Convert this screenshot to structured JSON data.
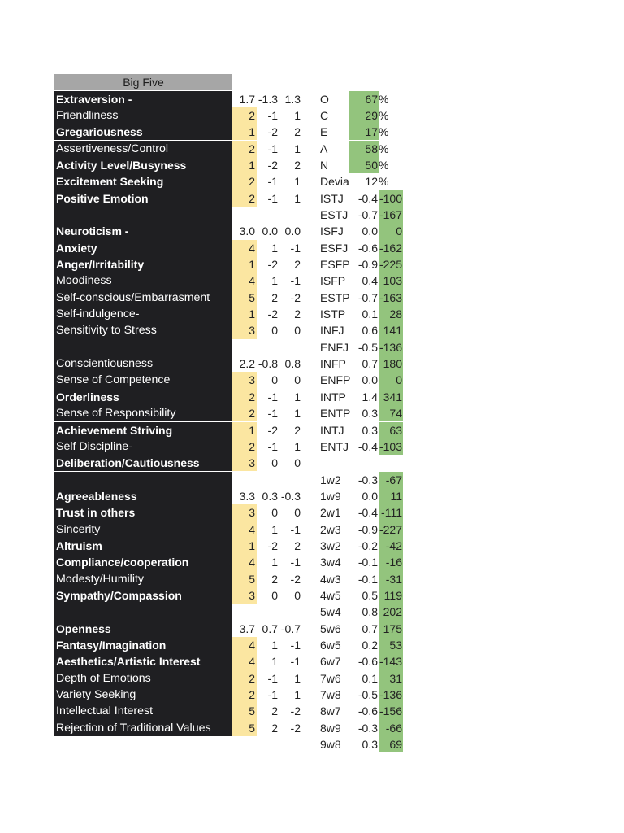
{
  "header": "Big Five",
  "traits": [
    {
      "label": "Extraversion -",
      "bold": true,
      "score": "",
      "a": "",
      "b": "",
      "summary": [
        "1.7",
        "-1.3",
        "1.3"
      ]
    },
    {
      "label": "Friendliness",
      "bold": false,
      "score": "2",
      "a": "-1",
      "b": "1"
    },
    {
      "label": "Gregariousness",
      "bold": true,
      "score": "1",
      "a": "-2",
      "b": "2"
    },
    {
      "label": "Assertiveness/Control",
      "bold": false,
      "score": "2",
      "a": "-1",
      "b": "1"
    },
    {
      "label": "Activity Level/Busyness",
      "bold": true,
      "score": "1",
      "a": "-2",
      "b": "2"
    },
    {
      "label": "Excitement Seeking",
      "bold": true,
      "score": "2",
      "a": "-1",
      "b": "1"
    },
    {
      "label": "Positive Emotion",
      "bold": true,
      "score": "2",
      "a": "-1",
      "b": "1"
    },
    {
      "label": "",
      "bold": false,
      "blank": true
    },
    {
      "label": "Neuroticism -",
      "bold": true,
      "summary": [
        "3.0",
        "0.0",
        "0.0"
      ]
    },
    {
      "label": "Anxiety",
      "bold": true,
      "score": "4",
      "a": "1",
      "b": "-1"
    },
    {
      "label": "Anger/Irritability",
      "bold": true,
      "score": "1",
      "a": "-2",
      "b": "2"
    },
    {
      "label": "Moodiness",
      "bold": false,
      "score": "4",
      "a": "1",
      "b": "-1"
    },
    {
      "label": "Self-conscious/Embarrasment",
      "bold": false,
      "score": "5",
      "a": "2",
      "b": "-2"
    },
    {
      "label": "Self-indulgence-",
      "bold": false,
      "score": "1",
      "a": "-2",
      "b": "2"
    },
    {
      "label": "Sensitivity to Stress",
      "bold": false,
      "score": "3",
      "a": "0",
      "b": "0"
    },
    {
      "label": "",
      "bold": false,
      "blank": true
    },
    {
      "label": "Conscientiousness",
      "bold": false,
      "summary": [
        "2.2",
        "-0.8",
        "0.8"
      ]
    },
    {
      "label": "Sense of Competence",
      "bold": false,
      "score": "3",
      "a": "0",
      "b": "0"
    },
    {
      "label": "Orderliness",
      "bold": true,
      "score": "2",
      "a": "-1",
      "b": "1"
    },
    {
      "label": "Sense of Responsibility",
      "bold": false,
      "score": "2",
      "a": "-1",
      "b": "1"
    },
    {
      "label": "Achievement Striving",
      "bold": true,
      "score": "1",
      "a": "-2",
      "b": "2"
    },
    {
      "label": "Self Discipline-",
      "bold": false,
      "score": "2",
      "a": "-1",
      "b": "1"
    },
    {
      "label": "Deliberation/Cautiousness",
      "bold": true,
      "score": "3",
      "a": "0",
      "b": "0"
    },
    {
      "label": "",
      "bold": false,
      "blank": true
    },
    {
      "label": "Agreeableness",
      "bold": true,
      "summary": [
        "3.3",
        "0.3",
        "-0.3"
      ]
    },
    {
      "label": "Trust in others",
      "bold": true,
      "score": "3",
      "a": "0",
      "b": "0"
    },
    {
      "label": "Sincerity",
      "bold": false,
      "score": "4",
      "a": "1",
      "b": "-1"
    },
    {
      "label": "Altruism",
      "bold": true,
      "score": "1",
      "a": "-2",
      "b": "2"
    },
    {
      "label": "Compliance/cooperation",
      "bold": true,
      "score": "4",
      "a": "1",
      "b": "-1"
    },
    {
      "label": "Modesty/Humility",
      "bold": false,
      "score": "5",
      "a": "2",
      "b": "-2"
    },
    {
      "label": "Sympathy/Compassion",
      "bold": true,
      "score": "3",
      "a": "0",
      "b": "0"
    },
    {
      "label": "",
      "bold": false,
      "blank": true
    },
    {
      "label": "Openness",
      "bold": true,
      "summary": [
        "3.7",
        "0.7",
        "-0.7"
      ]
    },
    {
      "label": "Fantasy/Imagination",
      "bold": true,
      "score": "4",
      "a": "1",
      "b": "-1"
    },
    {
      "label": "Aesthetics/Artistic Interest",
      "bold": true,
      "score": "4",
      "a": "1",
      "b": "-1"
    },
    {
      "label": "Depth of Emotions",
      "bold": false,
      "score": "2",
      "a": "-1",
      "b": "1"
    },
    {
      "label": "Variety Seeking",
      "bold": false,
      "score": "2",
      "a": "-1",
      "b": "1"
    },
    {
      "label": "Intellectual Interest",
      "bold": false,
      "score": "5",
      "a": "2",
      "b": "-2"
    },
    {
      "label": "Rejection of Traditional Values",
      "bold": false,
      "score": "5",
      "a": "2",
      "b": "-2"
    }
  ],
  "ocean": [
    {
      "label": "O",
      "value": "67",
      "unit": "%"
    },
    {
      "label": "C",
      "value": "29",
      "unit": "%"
    },
    {
      "label": "E",
      "value": "17",
      "unit": "%"
    },
    {
      "label": "A",
      "value": "58",
      "unit": "%"
    },
    {
      "label": "N",
      "value": "50",
      "unit": "%"
    }
  ],
  "deviation": {
    "label": "Devia",
    "value": "12",
    "unit": "%"
  },
  "mbti": [
    {
      "label": "ISTJ",
      "value": "-0.4",
      "score": "-100"
    },
    {
      "label": "ESTJ",
      "value": "-0.7",
      "score": "-167"
    },
    {
      "label": "ISFJ",
      "value": "0.0",
      "score": "0"
    },
    {
      "label": "ESFJ",
      "value": "-0.6",
      "score": "-162"
    },
    {
      "label": "ESFP",
      "value": "-0.9",
      "score": "-225"
    },
    {
      "label": "ISFP",
      "value": "0.4",
      "score": "103"
    },
    {
      "label": "ESTP",
      "value": "-0.7",
      "score": "-163"
    },
    {
      "label": "ISTP",
      "value": "0.1",
      "score": "28"
    },
    {
      "label": "INFJ",
      "value": "0.6",
      "score": "141"
    },
    {
      "label": "ENFJ",
      "value": "-0.5",
      "score": "-136"
    },
    {
      "label": "INFP",
      "value": "0.7",
      "score": "180"
    },
    {
      "label": "ENFP",
      "value": "0.0",
      "score": "0"
    },
    {
      "label": "INTP",
      "value": "1.4",
      "score": "341"
    },
    {
      "label": "ENTP",
      "value": "0.3",
      "score": "74"
    },
    {
      "label": "INTJ",
      "value": "0.3",
      "score": "63"
    },
    {
      "label": "ENTJ",
      "value": "-0.4",
      "score": "-103"
    }
  ],
  "enneagram": [
    {
      "label": "1w2",
      "value": "-0.3",
      "score": "-67"
    },
    {
      "label": "1w9",
      "value": "0.0",
      "score": "11"
    },
    {
      "label": "2w1",
      "value": "-0.4",
      "score": "-111"
    },
    {
      "label": "2w3",
      "value": "-0.9",
      "score": "-227"
    },
    {
      "label": "3w2",
      "value": "-0.2",
      "score": "-42"
    },
    {
      "label": "3w4",
      "value": "-0.1",
      "score": "-16"
    },
    {
      "label": "4w3",
      "value": "-0.1",
      "score": "-31"
    },
    {
      "label": "4w5",
      "value": "0.5",
      "score": "119"
    },
    {
      "label": "5w4",
      "value": "0.8",
      "score": "202"
    },
    {
      "label": "5w6",
      "value": "0.7",
      "score": "175"
    },
    {
      "label": "6w5",
      "value": "0.2",
      "score": "53"
    },
    {
      "label": "6w7",
      "value": "-0.6",
      "score": "-143"
    },
    {
      "label": "7w6",
      "value": "0.1",
      "score": "31"
    },
    {
      "label": "7w8",
      "value": "-0.5",
      "score": "-136"
    },
    {
      "label": "8w7",
      "value": "-0.6",
      "score": "-156"
    },
    {
      "label": "8w9",
      "value": "-0.3",
      "score": "-66"
    },
    {
      "label": "9w8",
      "value": "0.3",
      "score": "69"
    }
  ]
}
